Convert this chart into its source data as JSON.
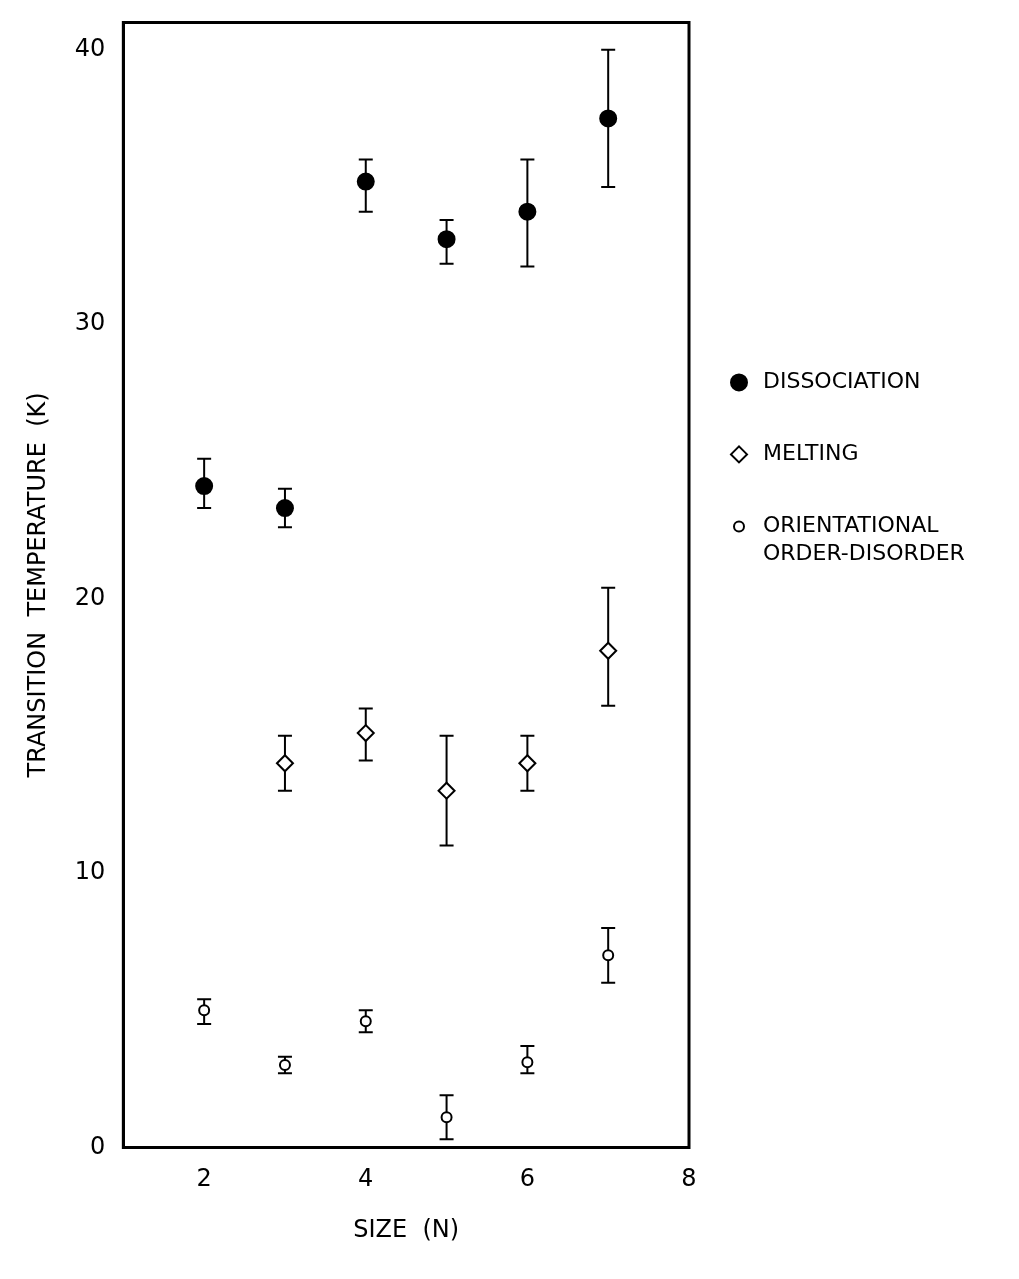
{
  "chart_data": {
    "type": "scatter",
    "xlabel": "SIZE  (N)",
    "ylabel": "TRANSITION  TEMPERATURE  (K)",
    "xlim": [
      1,
      8
    ],
    "xticks": [
      2,
      4,
      6,
      8
    ],
    "ylim": [
      0,
      41
    ],
    "yticks": [
      0,
      10,
      20,
      30,
      40
    ],
    "grid": false,
    "legend": "right",
    "series": [
      {
        "name": "DISSOCIATION",
        "color": "#000000",
        "marker": "circle",
        "x": [
          2,
          3,
          4,
          5,
          6,
          7
        ],
        "values": [
          24.1,
          23.3,
          35.2,
          33.1,
          34.1,
          37.5
        ],
        "errors": [
          [
            23.3,
            25.1
          ],
          [
            22.6,
            24.0
          ],
          [
            34.1,
            36.0
          ],
          [
            32.2,
            33.8
          ],
          [
            32.1,
            36.0
          ],
          [
            35.0,
            40.0
          ]
        ]
      },
      {
        "name": "MELTING",
        "color": "#000000",
        "marker": "diamond",
        "x": [
          3,
          4,
          5,
          6,
          7
        ],
        "values": [
          14.0,
          15.1,
          13.0,
          14.0,
          18.1
        ],
        "errors": [
          [
            13.0,
            15.0
          ],
          [
            14.1,
            16.0
          ],
          [
            11.0,
            15.0
          ],
          [
            13.0,
            15.0
          ],
          [
            16.1,
            20.4
          ]
        ]
      },
      {
        "name": "ORIENTATIONAL ORDER-DISORDER",
        "color": "#000000",
        "marker": "circle-open",
        "x": [
          2,
          3,
          4,
          5,
          6,
          7
        ],
        "values": [
          5.0,
          3.0,
          4.6,
          1.1,
          3.1,
          7.0
        ],
        "errors": [
          [
            4.5,
            5.4
          ],
          [
            2.7,
            3.3
          ],
          [
            4.2,
            5.0
          ],
          [
            0.3,
            1.9
          ],
          [
            2.7,
            3.7
          ],
          [
            6.0,
            8.0
          ]
        ]
      }
    ]
  }
}
